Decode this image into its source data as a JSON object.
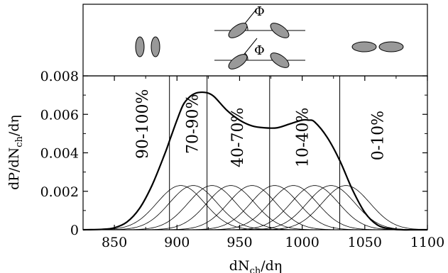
{
  "chart_data": {
    "type": "line",
    "title": "",
    "xlabel": "dN",
    "xlabel_sub": "ch",
    "xlabel_suffix": "/dη",
    "ylabel": "dP/dN",
    "ylabel_sub": "ch",
    "ylabel_suffix": "/dη",
    "xlim": [
      825,
      1100
    ],
    "ylim": [
      0,
      0.008
    ],
    "x_ticks": [
      850,
      900,
      950,
      1000,
      1050,
      1100
    ],
    "x_tick_labels": [
      "850",
      "900",
      "950",
      "1000",
      "1050",
      "1100"
    ],
    "y_ticks": [
      0,
      0.002,
      0.004,
      0.006,
      0.008
    ],
    "y_tick_labels": [
      "0",
      "0.002",
      "0.004",
      "0.006",
      "0.008"
    ],
    "grid": false,
    "total_distribution": {
      "x": [
        825,
        840,
        850,
        860,
        870,
        880,
        890,
        895,
        900,
        905,
        910,
        915,
        920,
        925,
        930,
        940,
        950,
        960,
        970,
        980,
        990,
        1000,
        1005,
        1010,
        1020,
        1030,
        1040,
        1050,
        1060,
        1070,
        1080,
        1090,
        1100
      ],
      "y": [
        0,
        2e-05,
        0.0001,
        0.0004,
        0.0011,
        0.0023,
        0.0039,
        0.0048,
        0.0057,
        0.0065,
        0.0069,
        0.0071,
        0.00715,
        0.0071,
        0.0069,
        0.0062,
        0.0057,
        0.0054,
        0.0053,
        0.0053,
        0.0055,
        0.0057,
        0.0057,
        0.0056,
        0.0048,
        0.0036,
        0.0021,
        0.0009,
        0.00025,
        5e-05,
        0,
        0,
        0
      ]
    },
    "component_gaussians": {
      "amplitude": 0.0023,
      "sigma": 19,
      "centers": [
        903,
        913,
        928,
        943,
        960,
        978,
        993,
        1010,
        1023,
        1035
      ]
    },
    "centrality_boundaries": [
      894,
      924,
      974,
      1030
    ],
    "centrality_labels": [
      "90-100%",
      "70-90%",
      "40-70%",
      "10-40%",
      "0-10%"
    ],
    "inset": {
      "angle_symbol": "Φ",
      "angle_symbol_2": "Φ"
    }
  }
}
